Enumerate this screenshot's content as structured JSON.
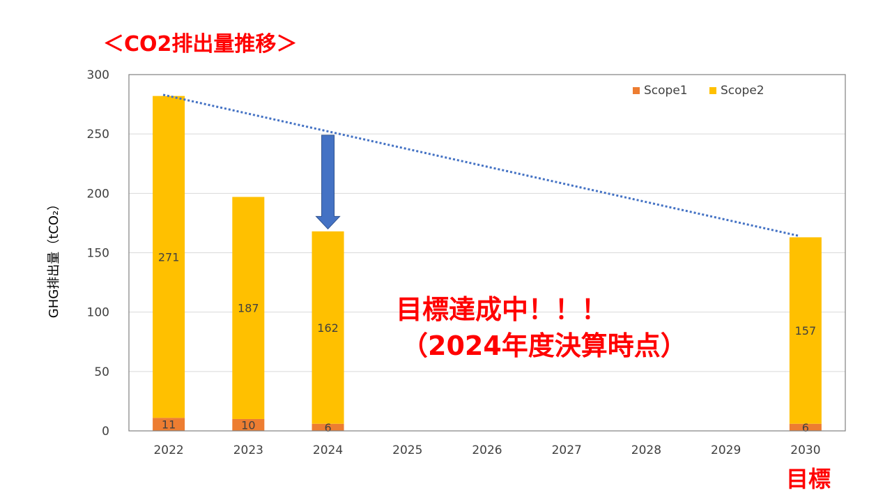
{
  "title": "＜CO2排出量推移＞",
  "annotation": {
    "line1": "目標達成中！！！",
    "line2": "（2024年度決算時点）"
  },
  "target_label": "目標",
  "chart_data": {
    "type": "bar",
    "stacked": true,
    "categories": [
      "2022",
      "2023",
      "2024",
      "2025",
      "2026",
      "2027",
      "2028",
      "2029",
      "2030"
    ],
    "series": [
      {
        "name": "Scope1",
        "values": [
          11,
          10,
          6,
          null,
          null,
          null,
          null,
          null,
          6
        ],
        "color": "#ED7D31"
      },
      {
        "name": "Scope2",
        "values": [
          271,
          187,
          162,
          null,
          null,
          null,
          null,
          null,
          157
        ],
        "color": "#FFC000"
      }
    ],
    "data_labels": {
      "Scope1": [
        "11",
        "10",
        "6",
        "",
        "",
        "",
        "",
        "",
        "6"
      ],
      "Scope2": [
        "271",
        "187",
        "162",
        "",
        "",
        "",
        "",
        "",
        "157"
      ]
    },
    "ylabel": "GHG排出量（tCO₂）",
    "ylim": [
      0,
      300
    ],
    "yticks": [
      0,
      50,
      100,
      150,
      200,
      250,
      300
    ],
    "grid": true,
    "legend_position": "top-right",
    "trend_line": {
      "from_category": "2022",
      "from_value": 283,
      "to_category": "2030",
      "to_value": 164,
      "style": "dotted",
      "color": "#4472C4"
    },
    "arrow": {
      "category": "2024",
      "from_value": 249,
      "to_value": 170,
      "color": "#4472C4"
    }
  }
}
